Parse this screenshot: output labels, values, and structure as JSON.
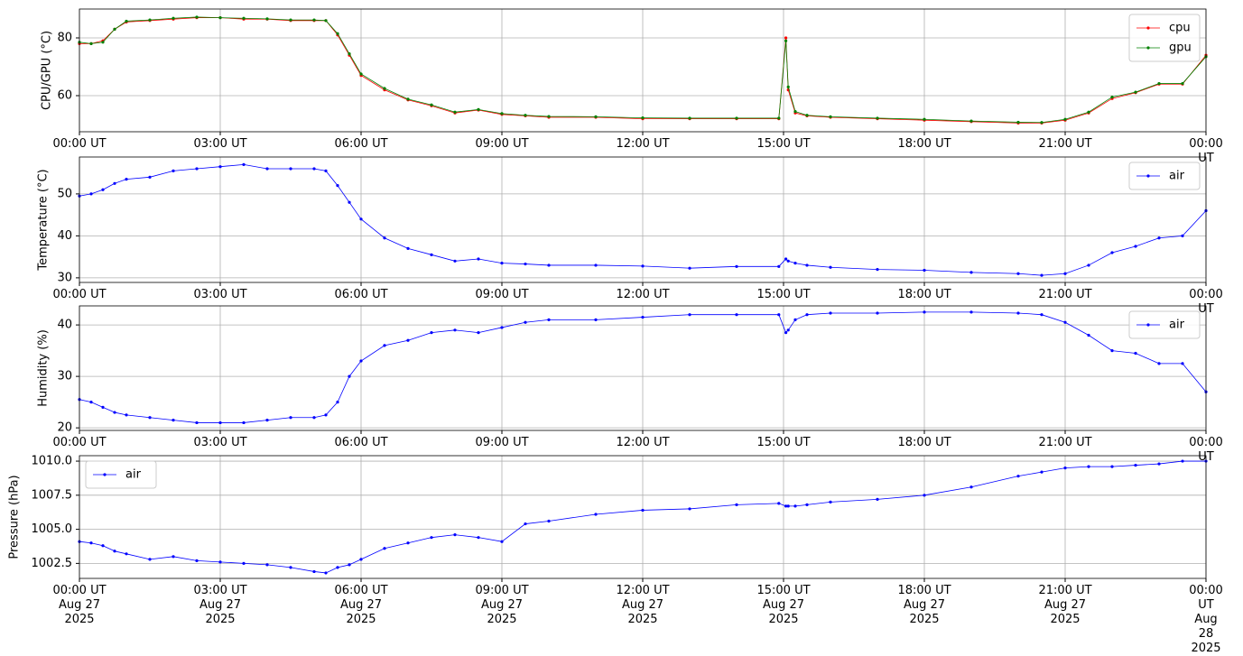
{
  "chart_data": [
    {
      "type": "line",
      "ylabel": "CPU/GPU (°C)",
      "grid": true,
      "legend": "upper right",
      "x": [
        0,
        0.25,
        0.5,
        0.75,
        1,
        1.5,
        2,
        2.5,
        3,
        3.5,
        4,
        4.5,
        5,
        5.25,
        5.5,
        5.75,
        6,
        6.5,
        7,
        7.5,
        8,
        8.5,
        9,
        9.5,
        10,
        11,
        12,
        13,
        14,
        14.9,
        15.05,
        15.1,
        15.25,
        15.5,
        16,
        17,
        18,
        19,
        20,
        20.5,
        21,
        21.5,
        22,
        22.5,
        23,
        23.5,
        24
      ],
      "series": [
        {
          "name": "cpu",
          "color": "#ff0000",
          "values": [
            78,
            78,
            79,
            83,
            85.5,
            86,
            86.5,
            87,
            87,
            86.5,
            86.5,
            86,
            86,
            86,
            81,
            74,
            67,
            62,
            58.5,
            56.5,
            54,
            55,
            53.5,
            53,
            52.5,
            52.5,
            52,
            52,
            52,
            52,
            80,
            62,
            54,
            53,
            52.5,
            52,
            51.5,
            51,
            50.5,
            50.5,
            51.5,
            54,
            59,
            61,
            64,
            64,
            74
          ]
        },
        {
          "name": "gpu",
          "color": "#008000",
          "values": [
            78.5,
            78,
            78.5,
            83,
            85.8,
            86.2,
            86.8,
            87.2,
            87,
            86.8,
            86.6,
            86.2,
            86.2,
            86,
            81.5,
            74.5,
            67.5,
            62.5,
            58.8,
            56.8,
            54.3,
            55.2,
            53.8,
            53.2,
            52.8,
            52.7,
            52.3,
            52.2,
            52.2,
            52.2,
            79,
            63,
            54.5,
            53.2,
            52.7,
            52.2,
            51.8,
            51.2,
            50.8,
            50.7,
            51.8,
            54.3,
            59.5,
            61.2,
            64.2,
            64.2,
            73.5
          ]
        }
      ],
      "xlim": [
        0,
        24
      ],
      "ylim": [
        47.5,
        90
      ],
      "yticks": [
        60,
        80
      ],
      "xticks": [
        {
          "value": 0,
          "label": "00:00 UT"
        },
        {
          "value": 3,
          "label": "03:00 UT"
        },
        {
          "value": 6,
          "label": "06:00 UT"
        },
        {
          "value": 9,
          "label": "09:00 UT"
        },
        {
          "value": 12,
          "label": "12:00 UT"
        },
        {
          "value": 15,
          "label": "15:00 UT"
        },
        {
          "value": 18,
          "label": "18:00 UT"
        },
        {
          "value": 21,
          "label": "21:00 UT"
        },
        {
          "value": 24,
          "label": "00:00 UT"
        }
      ]
    },
    {
      "type": "line",
      "ylabel": "Temperature (°C)",
      "grid": true,
      "legend": "upper right",
      "x": [
        0,
        0.25,
        0.5,
        0.75,
        1,
        1.5,
        2,
        2.5,
        3,
        3.5,
        4,
        4.5,
        5,
        5.25,
        5.5,
        5.75,
        6,
        6.5,
        7,
        7.5,
        8,
        8.5,
        9,
        9.5,
        10,
        11,
        12,
        13,
        14,
        14.9,
        15.05,
        15.1,
        15.25,
        15.5,
        16,
        17,
        18,
        19,
        20,
        20.5,
        21,
        21.5,
        22,
        22.5,
        23,
        23.5,
        24
      ],
      "series": [
        {
          "name": "air",
          "color": "#0000ff",
          "values": [
            49.5,
            50,
            51,
            52.5,
            53.5,
            54,
            55.5,
            56,
            56.5,
            57,
            56,
            56,
            56,
            55.5,
            52,
            48,
            44,
            39.5,
            37,
            35.5,
            34,
            34.5,
            33.5,
            33.3,
            33,
            33,
            32.8,
            32.3,
            32.7,
            32.7,
            34.5,
            34,
            33.5,
            33,
            32.5,
            32,
            31.8,
            31.3,
            31,
            30.6,
            31,
            33,
            36,
            37.5,
            39.5,
            40,
            46
          ]
        }
      ],
      "xlim": [
        0,
        24
      ],
      "ylim": [
        28.9,
        58.8
      ],
      "yticks": [
        30,
        40,
        50
      ],
      "xticks": [
        {
          "value": 0,
          "label": "00:00 UT"
        },
        {
          "value": 3,
          "label": "03:00 UT"
        },
        {
          "value": 6,
          "label": "06:00 UT"
        },
        {
          "value": 9,
          "label": "09:00 UT"
        },
        {
          "value": 12,
          "label": "12:00 UT"
        },
        {
          "value": 15,
          "label": "15:00 UT"
        },
        {
          "value": 18,
          "label": "18:00 UT"
        },
        {
          "value": 21,
          "label": "21:00 UT"
        },
        {
          "value": 24,
          "label": "00:00 UT"
        }
      ]
    },
    {
      "type": "line",
      "ylabel": "Humidity (%)",
      "grid": true,
      "legend": "upper right",
      "x": [
        0,
        0.25,
        0.5,
        0.75,
        1,
        1.5,
        2,
        2.5,
        3,
        3.5,
        4,
        4.5,
        5,
        5.25,
        5.5,
        5.75,
        6,
        6.5,
        7,
        7.5,
        8,
        8.5,
        9,
        9.5,
        10,
        11,
        12,
        13,
        14,
        14.9,
        15.05,
        15.1,
        15.25,
        15.5,
        16,
        17,
        18,
        19,
        20,
        20.5,
        21,
        21.5,
        22,
        22.5,
        23,
        23.5,
        24
      ],
      "series": [
        {
          "name": "air",
          "color": "#0000ff",
          "values": [
            25.5,
            25,
            24,
            23,
            22.5,
            22,
            21.5,
            21,
            21,
            21,
            21.5,
            22,
            22,
            22.5,
            25,
            30,
            33,
            36,
            37,
            38.5,
            39,
            38.5,
            39.5,
            40.5,
            41,
            41,
            41.5,
            42,
            42,
            42,
            38.5,
            39,
            41,
            42,
            42.3,
            42.3,
            42.5,
            42.5,
            42.3,
            42,
            40.5,
            38,
            35,
            34.5,
            32.5,
            32.5,
            27
          ]
        }
      ],
      "xlim": [
        0,
        24
      ],
      "ylim": [
        19.5,
        43.7
      ],
      "yticks": [
        20,
        30,
        40
      ],
      "xticks": [
        {
          "value": 0,
          "label": "00:00 UT"
        },
        {
          "value": 3,
          "label": "03:00 UT"
        },
        {
          "value": 6,
          "label": "06:00 UT"
        },
        {
          "value": 9,
          "label": "09:00 UT"
        },
        {
          "value": 12,
          "label": "12:00 UT"
        },
        {
          "value": 15,
          "label": "15:00 UT"
        },
        {
          "value": 18,
          "label": "18:00 UT"
        },
        {
          "value": 21,
          "label": "21:00 UT"
        },
        {
          "value": 24,
          "label": "00:00 UT"
        }
      ]
    },
    {
      "type": "line",
      "ylabel": "Pressure (hPa)",
      "grid": true,
      "legend": "upper left",
      "x": [
        0,
        0.25,
        0.5,
        0.75,
        1,
        1.5,
        2,
        2.5,
        3,
        3.5,
        4,
        4.5,
        5,
        5.25,
        5.5,
        5.75,
        6,
        6.5,
        7,
        7.5,
        8,
        8.5,
        9,
        9.5,
        10,
        11,
        12,
        13,
        14,
        14.9,
        15.05,
        15.1,
        15.25,
        15.5,
        16,
        17,
        18,
        19,
        20,
        20.5,
        21,
        21.5,
        22,
        22.5,
        23,
        23.5,
        24
      ],
      "series": [
        {
          "name": "air",
          "color": "#0000ff",
          "values": [
            1004.1,
            1004,
            1003.8,
            1003.4,
            1003.2,
            1002.8,
            1003,
            1002.7,
            1002.6,
            1002.5,
            1002.4,
            1002.2,
            1001.9,
            1001.8,
            1002.2,
            1002.4,
            1002.8,
            1003.6,
            1004,
            1004.4,
            1004.6,
            1004.4,
            1004.1,
            1005.4,
            1005.6,
            1006.1,
            1006.4,
            1006.5,
            1006.8,
            1006.9,
            1006.7,
            1006.7,
            1006.7,
            1006.8,
            1007,
            1007.2,
            1007.5,
            1008.1,
            1008.9,
            1009.2,
            1009.5,
            1009.6,
            1009.6,
            1009.7,
            1009.8,
            1010,
            1010
          ]
        }
      ],
      "xlim": [
        0,
        24
      ],
      "ylim": [
        1001.4,
        1010.4
      ],
      "yticks": [
        1002.5,
        {
          "value": 1005,
          "label": "1005.0"
        },
        1007.5,
        {
          "value": 1010,
          "label": "1010.0"
        }
      ],
      "xticks": [
        {
          "value": 0,
          "label": "00:00 UT\nAug 27\n2025"
        },
        {
          "value": 3,
          "label": "03:00 UT\nAug 27\n2025"
        },
        {
          "value": 6,
          "label": "06:00 UT\nAug 27\n2025"
        },
        {
          "value": 9,
          "label": "09:00 UT\nAug 27\n2025"
        },
        {
          "value": 12,
          "label": "12:00 UT\nAug 27\n2025"
        },
        {
          "value": 15,
          "label": "15:00 UT\nAug 27\n2025"
        },
        {
          "value": 18,
          "label": "18:00 UT\nAug 27\n2025"
        },
        {
          "value": 21,
          "label": "21:00 UT\nAug 27\n2025"
        },
        {
          "value": 24,
          "label": "00:00 UT\nAug 28\n2025"
        }
      ]
    }
  ]
}
